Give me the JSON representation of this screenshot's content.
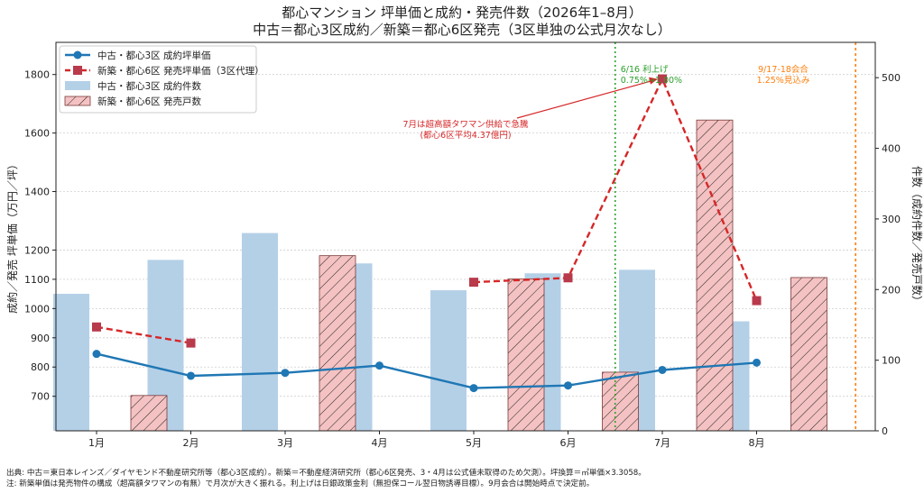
{
  "chart_data": {
    "type": "bar+line",
    "title": "都心マンション 坪単価と成約・発売件数（2026年1–8月）",
    "subtitle": "中古＝都心3区成約／新築＝都心6区発売（3区単独の公式月次なし）",
    "categories": [
      "1月",
      "2月",
      "3月",
      "4月",
      "5月",
      "6月",
      "7月",
      "8月"
    ],
    "ylabel_left": "成約／発売 坪単価（万円／坪）",
    "ylabel_right": "件数（成約件数／発売戸数）",
    "ylim_left": [
      582,
      1910
    ],
    "ylim_right": [
      0,
      550
    ],
    "yticks_left": [
      700,
      800,
      900,
      1000,
      1100,
      1200,
      1400,
      1600,
      1800
    ],
    "yticks_right": [
      0,
      100,
      200,
      300,
      400,
      500
    ],
    "grid": true,
    "legend_position": "top-left",
    "series": [
      {
        "name": "中古・都心3区 成約坪単価",
        "type": "line",
        "axis": "left",
        "color": "#1f77b4",
        "values": [
          845,
          770,
          780,
          805,
          728,
          737,
          790,
          815
        ]
      },
      {
        "name": "新築・都心6区 発売坪単価（3区代理）",
        "type": "line",
        "axis": "left",
        "color": "#d62728",
        "dashed": true,
        "values": [
          937,
          882,
          null,
          null,
          1090,
          1105,
          1785,
          1027
        ]
      },
      {
        "name": "中古・都心3区 成約件数",
        "type": "bar",
        "axis": "right",
        "color": "#b4d0e7",
        "values": [
          194,
          242,
          280,
          237,
          199,
          223,
          228,
          155
        ]
      },
      {
        "name": "新築・都心6区 発売戸数",
        "type": "bar",
        "axis": "right",
        "color": "#f4c2c2",
        "hatch": true,
        "values": [
          50,
          null,
          248,
          null,
          215,
          83,
          440,
          217
        ]
      }
    ],
    "annotations": [
      {
        "lines": [
          "7月は超高額タワマン供給で急騰",
          "(都心6区平均4.37億円)"
        ],
        "color": "#d62728"
      },
      {
        "lines": [
          "6/16 利上げ",
          "0.75%→1.00%"
        ],
        "color": "#2ca02c"
      },
      {
        "lines": [
          "9/17-18会合",
          "1.25%見込み"
        ],
        "color": "#ff7f0e"
      }
    ]
  },
  "footnotes": [
    "出典: 中古＝東日本レインズ／ダイヤモンド不動産研究所等（都心3区成約）。新築＝不動産経済研究所（都心6区発売、3・4月は公式値未取得のため欠測）。坪換算＝㎡単価×3.3058。",
    "注: 新築単価は発売物件の構成（超高額タワマンの有無）で月次が大きく振れる。利上げは日銀政策金利（無担保コール翌日物誘導目標）。9月会合は開始時点で決定前。"
  ]
}
